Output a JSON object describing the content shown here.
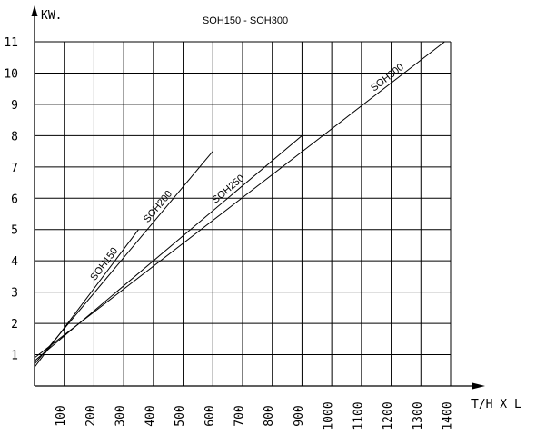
{
  "chart_data": {
    "type": "line",
    "title": "SOH150 - SOH300",
    "ylabel": "KW.",
    "xlabel": "T/H X L",
    "xlim": [
      0,
      1400
    ],
    "ylim": [
      0,
      11
    ],
    "x_ticks": [
      100,
      200,
      300,
      400,
      500,
      600,
      700,
      800,
      900,
      1000,
      1100,
      1200,
      1300,
      1400
    ],
    "y_ticks": [
      1,
      2,
      3,
      4,
      5,
      6,
      7,
      8,
      9,
      10,
      11
    ],
    "grid": true,
    "series": [
      {
        "name": "SOH150",
        "points": [
          [
            0,
            0.6
          ],
          [
            350,
            5.0
          ]
        ]
      },
      {
        "name": "SOH200",
        "points": [
          [
            0,
            0.7
          ],
          [
            600,
            7.5
          ]
        ]
      },
      {
        "name": "SOH250",
        "points": [
          [
            0,
            0.8
          ],
          [
            900,
            8.0
          ]
        ]
      },
      {
        "name": "SOH300",
        "points": [
          [
            0,
            0.9
          ],
          [
            1380,
            11.0
          ]
        ]
      }
    ]
  }
}
